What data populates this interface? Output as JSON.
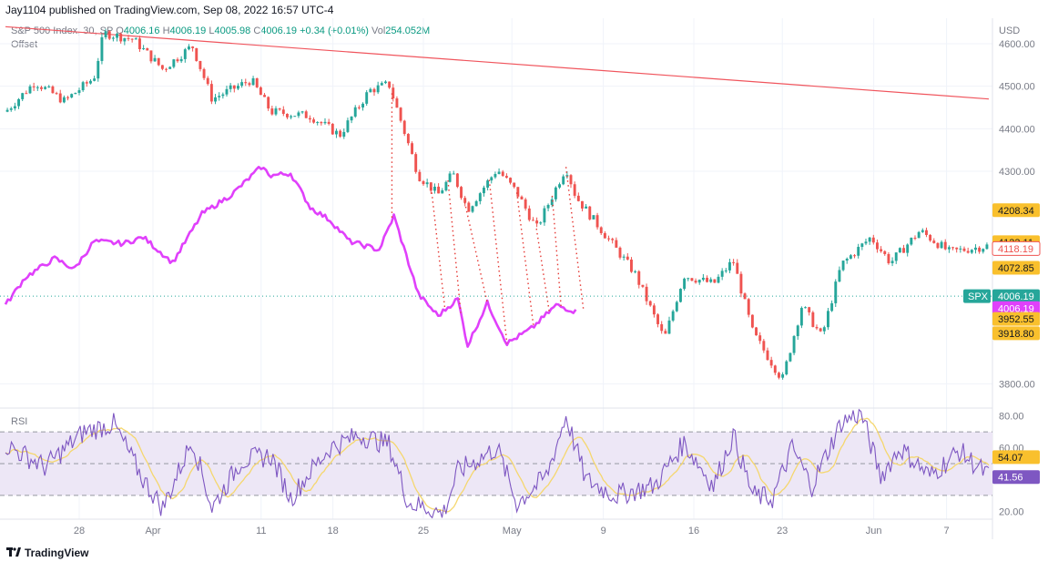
{
  "header": {
    "publish_text": "Jay1104 published on TradingView.com, Sep 08, 2022 16:57 UTC-4"
  },
  "legend": {
    "symbol": "S&P 500 Index, 30, SP",
    "o_label": "O",
    "o_value": "4006.16",
    "h_label": "H",
    "h_value": "4006.19",
    "l_label": "L",
    "l_value": "4005.98",
    "c_label": "C",
    "c_value": "4006.19",
    "change": "+0.34 (+0.01%)",
    "vol_label": "Vol",
    "vol_value": "254.052M",
    "offset_label": "Offset"
  },
  "rsi_panel": {
    "label": "RSI"
  },
  "footer": {
    "brand": "TradingView"
  },
  "colors": {
    "up": "#26a69a",
    "down": "#ef5350",
    "offset_line": "#e040fb",
    "trendline": "#f0555d",
    "rsi_line": "#7e57c2",
    "rsi_ma": "#f5d76e",
    "rsi_band": "#ede7f6",
    "spx_tag": "#26a69a",
    "yellow_tag": "#f9c02d"
  },
  "chart_data": [
    {
      "type": "candlestick",
      "title": "S&P 500 Index, 30, SP",
      "currency": "USD",
      "ylim": [
        3760,
        4660
      ],
      "yticks": [
        "4600.00",
        "4500.00",
        "4400.00",
        "4300.00",
        "3800.00"
      ],
      "x_tick_labels": [
        "28",
        "Apr",
        "11",
        "18",
        "25",
        "May",
        "9",
        "16",
        "23",
        "Jun",
        "7"
      ],
      "price_path_anchors": [
        [
          0,
          4440
        ],
        [
          0.03,
          4510
        ],
        [
          0.06,
          4465
        ],
        [
          0.09,
          4520
        ],
        [
          0.1,
          4625
        ],
        [
          0.13,
          4610
        ],
        [
          0.16,
          4540
        ],
        [
          0.19,
          4595
        ],
        [
          0.21,
          4470
        ],
        [
          0.25,
          4515
        ],
        [
          0.27,
          4440
        ],
        [
          0.31,
          4430
        ],
        [
          0.34,
          4385
        ],
        [
          0.37,
          4490
        ],
        [
          0.39,
          4505
        ],
        [
          0.42,
          4290
        ],
        [
          0.44,
          4245
        ],
        [
          0.455,
          4295
        ],
        [
          0.47,
          4210
        ],
        [
          0.5,
          4305
        ],
        [
          0.52,
          4250
        ],
        [
          0.54,
          4165
        ],
        [
          0.57,
          4310
        ],
        [
          0.58,
          4240
        ],
        [
          0.61,
          4150
        ],
        [
          0.64,
          4060
        ],
        [
          0.67,
          3905
        ],
        [
          0.69,
          4055
        ],
        [
          0.72,
          4035
        ],
        [
          0.74,
          4090
        ],
        [
          0.76,
          3920
        ],
        [
          0.79,
          3810
        ],
        [
          0.81,
          3985
        ],
        [
          0.83,
          3910
        ],
        [
          0.85,
          4080
        ],
        [
          0.88,
          4145
        ],
        [
          0.9,
          4085
        ],
        [
          0.93,
          4160
        ],
        [
          0.96,
          4110
        ],
        [
          1,
          4125
        ]
      ],
      "offset_series_name": "Offset",
      "offset_path_anchors": [
        [
          0,
          3985
        ],
        [
          0.02,
          4050
        ],
        [
          0.05,
          4095
        ],
        [
          0.07,
          4070
        ],
        [
          0.09,
          4135
        ],
        [
          0.12,
          4130
        ],
        [
          0.14,
          4145
        ],
        [
          0.17,
          4085
        ],
        [
          0.2,
          4200
        ],
        [
          0.23,
          4245
        ],
        [
          0.26,
          4310
        ],
        [
          0.27,
          4290
        ],
        [
          0.29,
          4295
        ],
        [
          0.31,
          4215
        ],
        [
          0.33,
          4185
        ],
        [
          0.35,
          4135
        ],
        [
          0.38,
          4115
        ],
        [
          0.395,
          4195
        ],
        [
          0.42,
          4010
        ],
        [
          0.44,
          3960
        ],
        [
          0.46,
          4000
        ],
        [
          0.47,
          3890
        ],
        [
          0.49,
          3990
        ],
        [
          0.51,
          3895
        ],
        [
          0.535,
          3930
        ],
        [
          0.56,
          3985
        ],
        [
          0.58,
          3970
        ]
      ],
      "trendline": {
        "start": 4640,
        "end": 4470
      },
      "dotted_links": [
        [
          0.393,
          0.393
        ],
        [
          0.433,
          0.447
        ],
        [
          0.45,
          0.463
        ],
        [
          0.467,
          0.49
        ],
        [
          0.492,
          0.51
        ],
        [
          0.52,
          0.537
        ],
        [
          0.54,
          0.553
        ],
        [
          0.556,
          0.565
        ],
        [
          0.57,
          0.588
        ]
      ],
      "price_tags": [
        {
          "label": "4208.34",
          "value": 4208.34,
          "style": "yellow"
        },
        {
          "label": "4133.11",
          "value": 4133.11,
          "style": "yellow"
        },
        {
          "label": "4118.19",
          "value": 4118.19,
          "style": "outline"
        },
        {
          "label": "4072.85",
          "value": 4072.85,
          "style": "yellow"
        },
        {
          "label": "4006.19",
          "value": 4006.19,
          "style": "green",
          "symbol": "SPX"
        },
        {
          "label": "4006.19",
          "value": 3978,
          "style": "magenta"
        },
        {
          "label": "3952.55",
          "value": 3952.55,
          "style": "yellow"
        },
        {
          "label": "3918.80",
          "value": 3918.8,
          "style": "yellow"
        }
      ]
    },
    {
      "type": "line",
      "title": "RSI",
      "ylim": [
        15,
        85
      ],
      "yticks": [
        "80.00",
        "60.00",
        "20.00"
      ],
      "band": [
        30,
        70
      ],
      "rsi_path_anchors": [
        [
          0,
          62
        ],
        [
          0.04,
          48
        ],
        [
          0.08,
          70
        ],
        [
          0.11,
          75
        ],
        [
          0.14,
          40
        ],
        [
          0.16,
          22
        ],
        [
          0.19,
          65
        ],
        [
          0.21,
          22
        ],
        [
          0.24,
          52
        ],
        [
          0.27,
          55
        ],
        [
          0.29,
          28
        ],
        [
          0.31,
          45
        ],
        [
          0.33,
          60
        ],
        [
          0.36,
          68
        ],
        [
          0.39,
          62
        ],
        [
          0.41,
          25
        ],
        [
          0.43,
          22
        ],
        [
          0.445,
          18
        ],
        [
          0.46,
          45
        ],
        [
          0.5,
          60
        ],
        [
          0.52,
          25
        ],
        [
          0.55,
          42
        ],
        [
          0.57,
          80
        ],
        [
          0.59,
          40
        ],
        [
          0.62,
          30
        ],
        [
          0.66,
          36
        ],
        [
          0.69,
          63
        ],
        [
          0.72,
          36
        ],
        [
          0.74,
          68
        ],
        [
          0.76,
          30
        ],
        [
          0.78,
          28
        ],
        [
          0.8,
          60
        ],
        [
          0.82,
          36
        ],
        [
          0.85,
          76
        ],
        [
          0.87,
          82
        ],
        [
          0.89,
          42
        ],
        [
          0.91,
          60
        ],
        [
          0.94,
          42
        ],
        [
          0.97,
          58
        ],
        [
          1,
          42
        ]
      ],
      "price_tags": [
        {
          "label": "54.07",
          "value": 54.07,
          "style": "yellow"
        },
        {
          "label": "41.56",
          "value": 41.56,
          "style": "purple"
        }
      ]
    }
  ]
}
